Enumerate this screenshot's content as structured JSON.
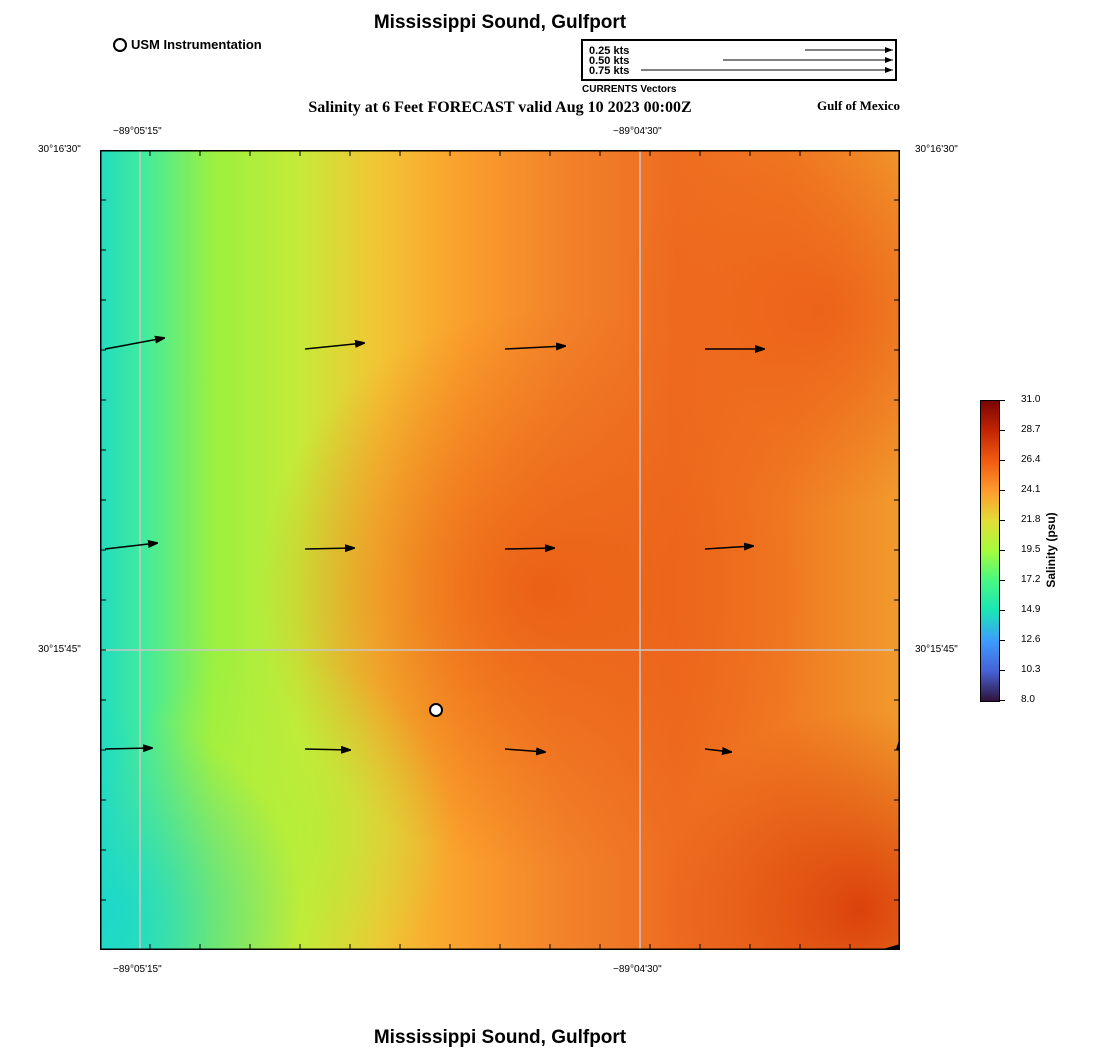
{
  "header": {
    "title": "Mississippi Sound, Gulfport",
    "subtitle": "Salinity at 6 Feet FORECAST valid Aug 10 2023 00:00Z",
    "region_label": "Gulf of Mexico",
    "instrument_legend": "USM Instrumentation"
  },
  "footer": {
    "title": "Mississippi Sound, Gulfport"
  },
  "vector_legend": {
    "caption": "CURRENTS Vectors",
    "entries": [
      "0.25 kts",
      "0.50 kts",
      "0.75 kts"
    ]
  },
  "axes": {
    "top_ticks": [
      "−89°05'15\"",
      "−89°04'30\""
    ],
    "bottom_ticks": [
      "−89°05'15\"",
      "−89°04'30\""
    ],
    "left_ticks": [
      "30°16'30\"",
      "30°15'45\""
    ],
    "right_ticks": [
      "30°16'30\"",
      "30°15'45\""
    ]
  },
  "colorbar": {
    "label": "Salinity (psu)",
    "ticks": [
      "31.0",
      "28.7",
      "26.4",
      "24.1",
      "21.8",
      "19.5",
      "17.2",
      "14.9",
      "12.6",
      "10.3",
      "8.0"
    ],
    "colors": [
      "#7a0403",
      "#c42503",
      "#f05b12",
      "#fe9b2d",
      "#e1dd37",
      "#a4fc3c",
      "#46f884",
      "#1ae4b6",
      "#3e9bfe",
      "#4662d7",
      "#30123b"
    ]
  },
  "map": {
    "instrument_station": "USM Instrumentation",
    "salinity_colors": {
      "low": "#1ed8c8",
      "mid": "#a8f03c",
      "high": "#ee6a1c",
      "max": "#e04a10"
    }
  }
}
